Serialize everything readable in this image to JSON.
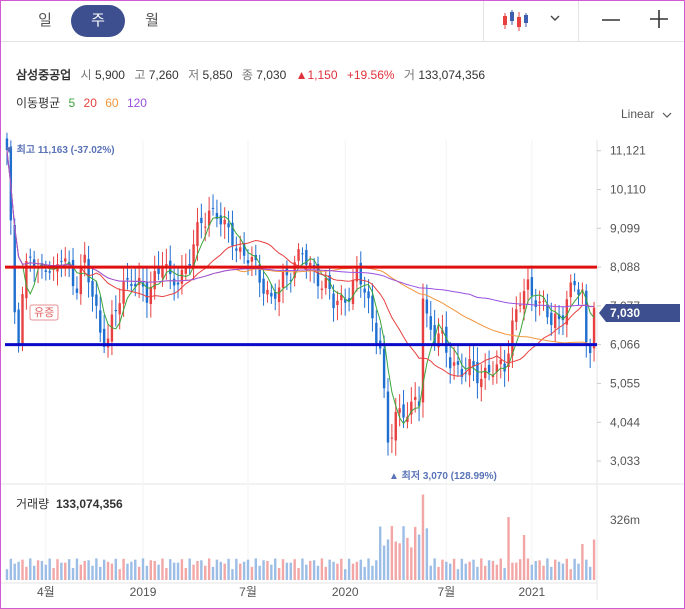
{
  "tabs": [
    {
      "label": "일",
      "active": false
    },
    {
      "label": "주",
      "active": true
    },
    {
      "label": "월",
      "active": false
    }
  ],
  "toolbar": {
    "chart_type_icon": "candlestick-icon",
    "dropdown_icon": "chevron-down-icon",
    "zoom_out_icon": "minus-icon",
    "zoom_in_icon": "plus-icon"
  },
  "stock": {
    "name": "삼성중공업",
    "open_label": "시",
    "open": "5,900",
    "high_label": "고",
    "high": "7,260",
    "low_label": "저",
    "low": "5,850",
    "close_label": "종",
    "close": "7,030",
    "change": "▲1,150",
    "change_pct": "+19.56%",
    "volume_label": "거",
    "volume": "133,074,356"
  },
  "ma": {
    "label": "이동평균",
    "periods": [
      {
        "label": "5",
        "color": "#3aa63a"
      },
      {
        "label": "20",
        "color": "#e84040"
      },
      {
        "label": "60",
        "color": "#f0963c"
      },
      {
        "label": "120",
        "color": "#9a4fe0"
      }
    ]
  },
  "scale_button": "Linear",
  "annotations": {
    "high": "▼ 최고 11,163 (-37.02%)",
    "low": "▲ 최저 3,070 (128.99%)",
    "event": "유증",
    "current_price": "7,030"
  },
  "volume_panel": {
    "label": "거래량",
    "value": "133,074,356",
    "axis_label": "326m"
  },
  "colors": {
    "up": "#e84040",
    "down": "#1f6fd1",
    "red_line": "#e01010",
    "blue_line": "#0a0ac8",
    "accent": "#3e4f8f"
  },
  "chart_data": [
    {
      "type": "candlestick",
      "title": "",
      "y_axis_ticks": [
        "11,121",
        "10,110",
        "9,099",
        "8,088",
        "7,077",
        "6,066",
        "5,055",
        "4,044",
        "3,033"
      ],
      "y_tick_values": [
        11121,
        10110,
        9099,
        8088,
        7077,
        6066,
        5055,
        4044,
        3033
      ],
      "ylim": [
        2800,
        11400
      ],
      "x_axis_ticks": [
        "4월",
        "2019",
        "7월",
        "2020",
        "7월",
        "2021"
      ],
      "x_tick_week": [
        10,
        35,
        62,
        87,
        113,
        135
      ],
      "weeks": 152,
      "horizontal_lines": [
        {
          "value": 8088,
          "color": "#e01010"
        },
        {
          "value": 6066,
          "color": "#0a0ac8"
        }
      ],
      "keypoints": [
        [
          0,
          11000
        ],
        [
          1,
          9000
        ],
        [
          2,
          7000
        ],
        [
          3,
          6400
        ],
        [
          4,
          7400
        ],
        [
          5,
          8100
        ],
        [
          6,
          8400
        ],
        [
          8,
          7800
        ],
        [
          10,
          8300
        ],
        [
          12,
          7900
        ],
        [
          14,
          8300
        ],
        [
          16,
          8000
        ],
        [
          18,
          7700
        ],
        [
          20,
          8200
        ],
        [
          22,
          7300
        ],
        [
          24,
          6500
        ],
        [
          26,
          6200
        ],
        [
          28,
          6900
        ],
        [
          30,
          7600
        ],
        [
          32,
          7900
        ],
        [
          34,
          7500
        ],
        [
          36,
          7300
        ],
        [
          38,
          7900
        ],
        [
          40,
          8300
        ],
        [
          42,
          7600
        ],
        [
          44,
          7800
        ],
        [
          46,
          8100
        ],
        [
          48,
          8600
        ],
        [
          50,
          9200
        ],
        [
          52,
          9600
        ],
        [
          54,
          9500
        ],
        [
          56,
          9000
        ],
        [
          58,
          8900
        ],
        [
          60,
          8500
        ],
        [
          62,
          8300
        ],
        [
          64,
          8000
        ],
        [
          66,
          7700
        ],
        [
          68,
          7200
        ],
        [
          70,
          7500
        ],
        [
          72,
          7900
        ],
        [
          74,
          8300
        ],
        [
          76,
          8400
        ],
        [
          78,
          8000
        ],
        [
          80,
          7900
        ],
        [
          82,
          7600
        ],
        [
          84,
          7100
        ],
        [
          86,
          7200
        ],
        [
          88,
          7500
        ],
        [
          90,
          7800
        ],
        [
          92,
          7500
        ],
        [
          94,
          6800
        ],
        [
          96,
          6000
        ],
        [
          97,
          4600
        ],
        [
          98,
          3400
        ],
        [
          99,
          3800
        ],
        [
          100,
          4300
        ],
        [
          102,
          4400
        ],
        [
          104,
          4300
        ],
        [
          106,
          4600
        ],
        [
          107,
          7400
        ],
        [
          108,
          6800
        ],
        [
          110,
          6300
        ],
        [
          112,
          6100
        ],
        [
          114,
          5700
        ],
        [
          116,
          5500
        ],
        [
          118,
          5300
        ],
        [
          120,
          5400
        ],
        [
          122,
          5300
        ],
        [
          124,
          5400
        ],
        [
          126,
          5300
        ],
        [
          128,
          5600
        ],
        [
          130,
          6600
        ],
        [
          132,
          7200
        ],
        [
          134,
          7500
        ],
        [
          136,
          7400
        ],
        [
          138,
          7000
        ],
        [
          140,
          6600
        ],
        [
          142,
          6700
        ],
        [
          144,
          7400
        ],
        [
          146,
          7500
        ],
        [
          148,
          7400
        ],
        [
          149,
          6000
        ],
        [
          150,
          6100
        ],
        [
          151,
          7030
        ]
      ],
      "volume_note": "volume bars shown in lower panel; spikes around 2020 rights issue and early 2021"
    }
  ]
}
